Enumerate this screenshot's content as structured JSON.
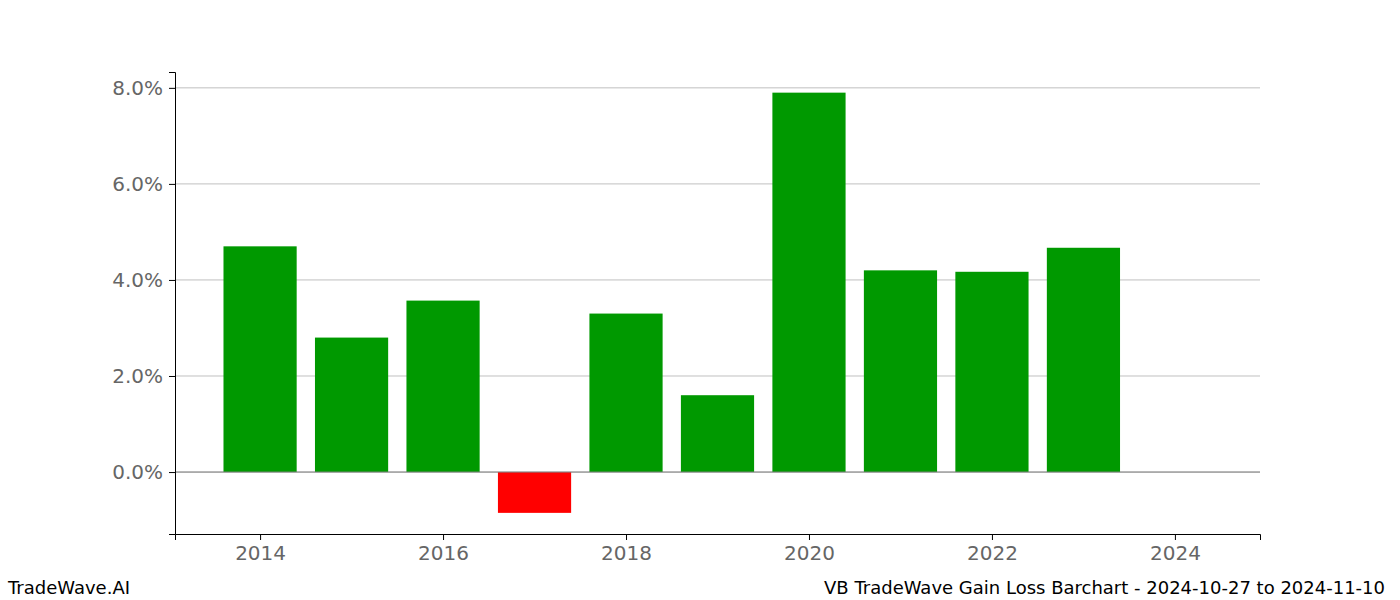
{
  "chart_data": {
    "type": "bar",
    "annotations": [
      "TradeWave.AI",
      "VB TradeWave Gain Loss Barchart - 2024-10-27 to 2024-11-10"
    ],
    "x": [
      2014,
      2015,
      2016,
      2017,
      2018,
      2019,
      2020,
      2021,
      2022,
      2023
    ],
    "values": [
      4.7,
      2.8,
      3.57,
      -0.85,
      3.3,
      1.6,
      7.9,
      4.2,
      4.17,
      4.67
    ],
    "colors": [
      "#009900",
      "#009900",
      "#009900",
      "#ff0000",
      "#009900",
      "#009900",
      "#009900",
      "#009900",
      "#009900",
      "#009900"
    ],
    "xlim": [
      2013.07,
      2024.93
    ],
    "xticks": [
      2014,
      2016,
      2018,
      2020,
      2022,
      2024
    ],
    "ylim": [
      -1.29,
      8.33
    ],
    "yticks": [
      {
        "value": 0,
        "label": "0.0%"
      },
      {
        "value": 2,
        "label": "2.0%"
      },
      {
        "value": 4,
        "label": "4.0%"
      },
      {
        "value": 6,
        "label": "6.0%"
      },
      {
        "value": 8,
        "label": "8.0%"
      }
    ],
    "grid": true
  }
}
